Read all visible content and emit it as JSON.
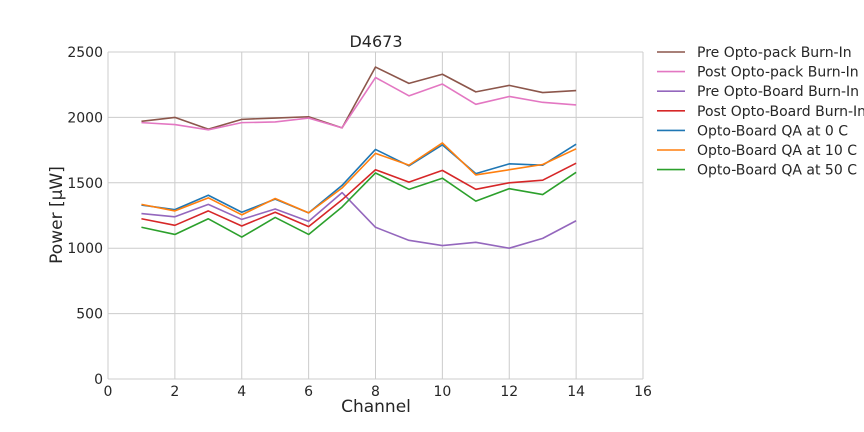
{
  "chart_data": {
    "type": "line",
    "title": "D4673",
    "xlabel": "Channel",
    "ylabel": "Power [μW]",
    "xlim": [
      0,
      16
    ],
    "ylim": [
      0,
      2500
    ],
    "xticks": [
      0,
      2,
      4,
      6,
      8,
      10,
      12,
      14,
      16
    ],
    "yticks": [
      0,
      500,
      1000,
      1500,
      2000,
      2500
    ],
    "grid": true,
    "legend_position": "right, outside plot",
    "x": [
      1,
      2,
      3,
      4,
      5,
      6,
      7,
      8,
      9,
      10,
      11,
      12,
      13,
      14
    ],
    "series": [
      {
        "name": "Pre Opto-pack Burn-In",
        "color": "#8c564b",
        "values": [
          1970,
          2000,
          1910,
          1985,
          1995,
          2005,
          1920,
          2385,
          2260,
          2330,
          2195,
          2245,
          2190,
          2205
        ]
      },
      {
        "name": "Post Opto-pack Burn-In",
        "color": "#e377c2",
        "values": [
          1960,
          1945,
          1905,
          1960,
          1965,
          1995,
          1920,
          2305,
          2165,
          2255,
          2100,
          2160,
          2115,
          2095
        ]
      },
      {
        "name": "Pre Opto-Board Burn-In",
        "color": "#9467bd",
        "values": [
          1265,
          1240,
          1335,
          1220,
          1300,
          1205,
          1425,
          1160,
          1060,
          1020,
          1045,
          1000,
          1075,
          1210
        ]
      },
      {
        "name": "Post Opto-Board Burn-In",
        "color": "#d62728",
        "values": [
          1225,
          1175,
          1285,
          1170,
          1275,
          1165,
          1370,
          1600,
          1505,
          1595,
          1450,
          1500,
          1520,
          1650
        ]
      },
      {
        "name": "Opto-Board QA at 0 C",
        "color": "#1f77b4",
        "values": [
          1330,
          1295,
          1405,
          1275,
          1375,
          1270,
          1480,
          1755,
          1630,
          1790,
          1570,
          1645,
          1635,
          1795
        ]
      },
      {
        "name": "Opto-Board QA at 10 C",
        "color": "#ff7f0e",
        "values": [
          1335,
          1285,
          1385,
          1255,
          1380,
          1270,
          1460,
          1725,
          1635,
          1805,
          1560,
          1600,
          1640,
          1760
        ]
      },
      {
        "name": "Opto-Board QA at 50 C",
        "color": "#2ca02c",
        "values": [
          1160,
          1105,
          1225,
          1085,
          1235,
          1105,
          1315,
          1575,
          1450,
          1535,
          1360,
          1455,
          1410,
          1580
        ]
      }
    ]
  }
}
